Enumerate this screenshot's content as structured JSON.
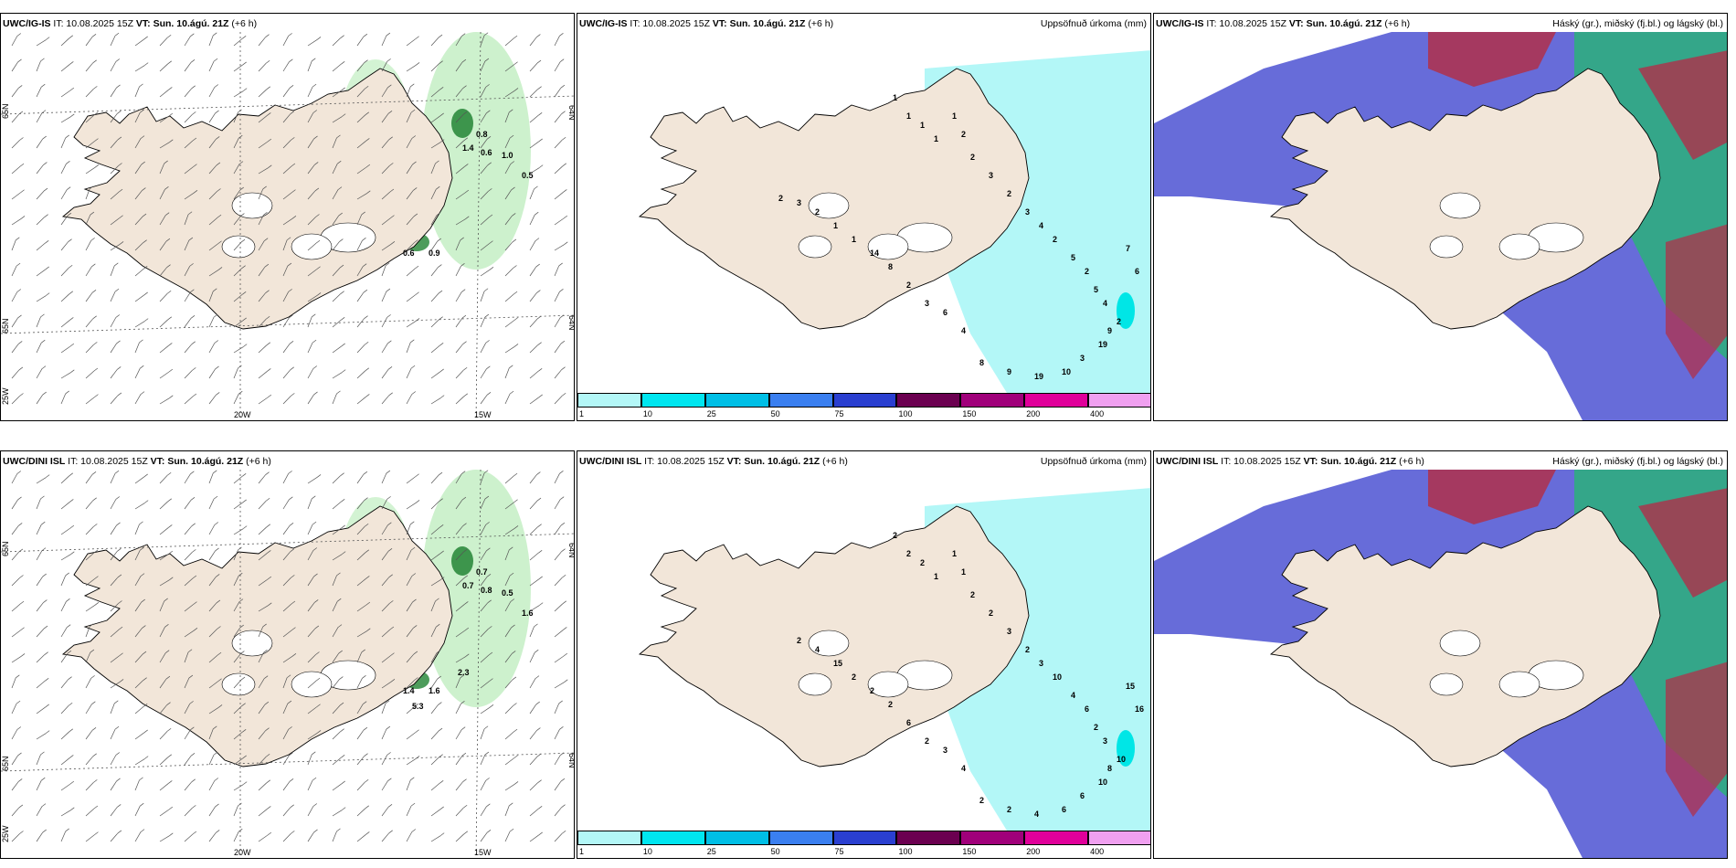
{
  "panels": [
    {
      "id": "p1",
      "type": "wind",
      "model": "UWC/IG-IS",
      "it": "IT: 10.08.2025 15Z",
      "vt_label": "VT:",
      "vt": "Sun. 10.ágú. 21Z",
      "lead": "(+6 h)",
      "right_title": "",
      "lat_labels": [
        "65N",
        "64N",
        "65N",
        "64N"
      ],
      "lon_labels": [
        "20W",
        "15W"
      ],
      "edge_label": "25W",
      "values": [
        "0.8",
        "1.4",
        "0.6",
        "1.0",
        "0.5",
        "0.6",
        "0.9"
      ]
    },
    {
      "id": "p2",
      "type": "precip",
      "model": "UWC/IG-IS",
      "it": "IT: 10.08.2025 15Z",
      "vt_label": "VT:",
      "vt": "Sun. 10.ágú. 21Z",
      "lead": "(+6 h)",
      "right_title": "Uppsöfnuð úrkoma (mm)",
      "values": [
        "1",
        "1",
        "1",
        "1",
        "1",
        "2",
        "2",
        "3",
        "2",
        "3",
        "4",
        "2",
        "5",
        "2",
        "5",
        "4",
        "2",
        "7",
        "6",
        "9",
        "19",
        "3",
        "10",
        "19",
        "9",
        "8",
        "4",
        "6",
        "3",
        "2",
        "8",
        "14",
        "1",
        "1",
        "2",
        "3",
        "2"
      ],
      "colorbar": [
        "1",
        "10",
        "25",
        "50",
        "75",
        "100",
        "150",
        "200",
        "400"
      ]
    },
    {
      "id": "p3",
      "type": "cloud",
      "model": "UWC/IG-IS",
      "it": "IT: 10.08.2025 15Z",
      "vt_label": "VT:",
      "vt": "Sun. 10.ágú. 21Z",
      "lead": "(+6 h)",
      "right_title": "Háský (gr.), miðský (fj.bl.) og lágský (bl.)"
    },
    {
      "id": "p4",
      "type": "wind",
      "model": "UWC/DINI ISL",
      "it": "IT: 10.08.2025 15Z",
      "vt_label": "VT:",
      "vt": "Sun. 10.ágú. 21Z",
      "lead": "(+6 h)",
      "right_title": "",
      "lat_labels": [
        "65N",
        "64N",
        "65N",
        "64N"
      ],
      "lon_labels": [
        "20W",
        "15W"
      ],
      "edge_label": "25W",
      "values": [
        "0.7",
        "0.7",
        "0.8",
        "0.5",
        "1.6",
        "1.4",
        "1.6",
        "2.3",
        "5.3"
      ]
    },
    {
      "id": "p5",
      "type": "precip",
      "model": "UWC/DINI ISL",
      "it": "IT: 10.08.2025 15Z",
      "vt_label": "VT:",
      "vt": "Sun. 10.ágú. 21Z",
      "lead": "(+6 h)",
      "right_title": "Uppsöfnuð úrkoma (mm)",
      "values": [
        "2",
        "2",
        "2",
        "1",
        "1",
        "1",
        "2",
        "2",
        "3",
        "2",
        "3",
        "10",
        "4",
        "6",
        "2",
        "3",
        "10",
        "15",
        "16",
        "8",
        "10",
        "6",
        "6",
        "4",
        "2",
        "2",
        "4",
        "3",
        "2",
        "6",
        "2",
        "2",
        "2",
        "15",
        "4",
        "2"
      ],
      "colorbar": [
        "1",
        "10",
        "25",
        "50",
        "75",
        "100",
        "150",
        "200",
        "400"
      ]
    },
    {
      "id": "p6",
      "type": "cloud",
      "model": "UWC/DINI ISL",
      "it": "IT: 10.08.2025 15Z",
      "vt_label": "VT:",
      "vt": "Sun. 10.ágú. 21Z",
      "lead": "(+6 h)",
      "right_title": "Háský (gr.), miðský (fj.bl.) og lágský (bl.)"
    }
  ],
  "colors": {
    "land": "#f2e6d9",
    "precip_light": "#b3f7f7",
    "precip_mid": "#00e6e6",
    "green_light": "#c8f0c8",
    "green_dark": "#2e8b3e",
    "cloud_low": "#5a5fd6",
    "cloud_mid": "#2bb07a",
    "cloud_high": "#b0304a",
    "colorbar": [
      "#b3f7f7",
      "#00e6f0",
      "#00bfe6",
      "#3a7ff0",
      "#2a3fd0",
      "#6b0050",
      "#a0007a",
      "#e0009a",
      "#f0a0f0"
    ]
  }
}
